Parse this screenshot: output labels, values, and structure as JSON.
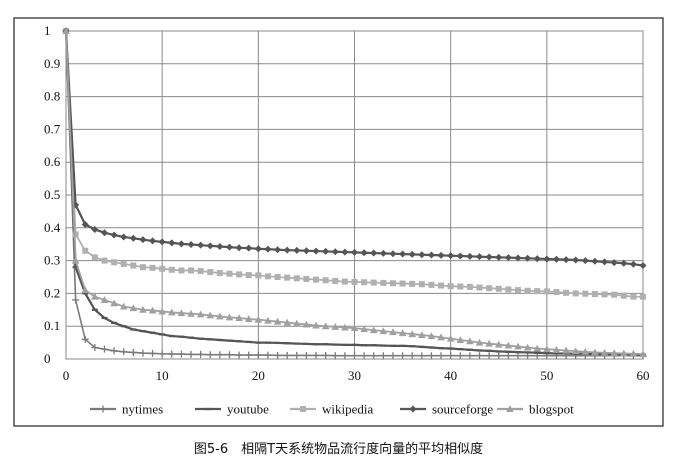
{
  "caption": "图5-6　相隔T天系统物品流行度向量的平均相似度",
  "chart_data": {
    "type": "line",
    "xlim": [
      0,
      60
    ],
    "ylim": [
      0,
      1
    ],
    "x_ticks": [
      0,
      10,
      20,
      30,
      40,
      50,
      60
    ],
    "y_ticks": [
      0,
      0.1,
      0.2,
      0.3,
      0.4,
      0.5,
      0.6,
      0.7,
      0.8,
      0.9,
      1
    ],
    "grid": true,
    "legend_position": "bottom",
    "x": [
      0,
      1,
      2,
      3,
      4,
      5,
      6,
      7,
      8,
      9,
      10,
      11,
      12,
      13,
      14,
      15,
      16,
      17,
      18,
      19,
      20,
      21,
      22,
      23,
      24,
      25,
      26,
      27,
      28,
      29,
      30,
      31,
      32,
      33,
      34,
      35,
      36,
      37,
      38,
      39,
      40,
      41,
      42,
      43,
      44,
      45,
      46,
      47,
      48,
      49,
      50,
      51,
      52,
      53,
      54,
      55,
      56,
      57,
      58,
      59,
      60
    ],
    "series": [
      {
        "name": "nytimes",
        "color": "#7a7a7a",
        "marker": "plus",
        "values": [
          1,
          0.18,
          0.06,
          0.035,
          0.03,
          0.025,
          0.022,
          0.02,
          0.018,
          0.017,
          0.016,
          0.015,
          0.015,
          0.014,
          0.014,
          0.013,
          0.013,
          0.013,
          0.012,
          0.012,
          0.012,
          0.012,
          0.011,
          0.011,
          0.011,
          0.011,
          0.011,
          0.011,
          0.01,
          0.01,
          0.01,
          0.01,
          0.01,
          0.01,
          0.01,
          0.01,
          0.01,
          0.01,
          0.01,
          0.01,
          0.01,
          0.01,
          0.01,
          0.01,
          0.01,
          0.01,
          0.01,
          0.01,
          0.01,
          0.01,
          0.01,
          0.01,
          0.01,
          0.01,
          0.01,
          0.01,
          0.01,
          0.01,
          0.01,
          0.01,
          0.01
        ]
      },
      {
        "name": "youtube",
        "color": "#555555",
        "marker": "dash",
        "values": [
          1,
          0.28,
          0.2,
          0.15,
          0.125,
          0.11,
          0.1,
          0.09,
          0.085,
          0.08,
          0.075,
          0.07,
          0.068,
          0.065,
          0.062,
          0.06,
          0.058,
          0.056,
          0.054,
          0.052,
          0.05,
          0.05,
          0.049,
          0.048,
          0.047,
          0.046,
          0.045,
          0.045,
          0.044,
          0.043,
          0.043,
          0.042,
          0.042,
          0.041,
          0.04,
          0.04,
          0.039,
          0.037,
          0.035,
          0.033,
          0.032,
          0.03,
          0.028,
          0.026,
          0.025,
          0.023,
          0.022,
          0.021,
          0.02,
          0.019,
          0.018,
          0.017,
          0.017,
          0.016,
          0.016,
          0.015,
          0.015,
          0.014,
          0.014,
          0.014,
          0.013
        ]
      },
      {
        "name": "wikipedia",
        "color": "#b0b0b0",
        "marker": "square",
        "values": [
          1,
          0.38,
          0.33,
          0.31,
          0.3,
          0.295,
          0.29,
          0.285,
          0.28,
          0.278,
          0.275,
          0.272,
          0.27,
          0.27,
          0.268,
          0.265,
          0.262,
          0.26,
          0.258,
          0.256,
          0.255,
          0.252,
          0.25,
          0.248,
          0.246,
          0.244,
          0.242,
          0.24,
          0.238,
          0.236,
          0.235,
          0.234,
          0.233,
          0.232,
          0.231,
          0.23,
          0.229,
          0.228,
          0.226,
          0.224,
          0.222,
          0.221,
          0.22,
          0.218,
          0.216,
          0.214,
          0.212,
          0.21,
          0.208,
          0.207,
          0.206,
          0.204,
          0.202,
          0.2,
          0.199,
          0.198,
          0.197,
          0.196,
          0.193,
          0.19,
          0.19
        ]
      },
      {
        "name": "sourceforge",
        "color": "#555555",
        "marker": "diamond",
        "values": [
          1,
          0.47,
          0.41,
          0.395,
          0.385,
          0.378,
          0.372,
          0.368,
          0.364,
          0.36,
          0.357,
          0.354,
          0.351,
          0.349,
          0.347,
          0.345,
          0.343,
          0.341,
          0.339,
          0.338,
          0.336,
          0.335,
          0.333,
          0.332,
          0.331,
          0.33,
          0.329,
          0.328,
          0.327,
          0.326,
          0.325,
          0.324,
          0.323,
          0.322,
          0.321,
          0.32,
          0.319,
          0.318,
          0.317,
          0.316,
          0.315,
          0.314,
          0.313,
          0.312,
          0.311,
          0.31,
          0.309,
          0.308,
          0.307,
          0.306,
          0.305,
          0.304,
          0.303,
          0.302,
          0.3,
          0.298,
          0.296,
          0.294,
          0.292,
          0.289,
          0.285
        ]
      },
      {
        "name": "blogspot",
        "color": "#a0a0a0",
        "marker": "triangle",
        "values": [
          1,
          0.3,
          0.21,
          0.19,
          0.18,
          0.17,
          0.16,
          0.155,
          0.15,
          0.148,
          0.145,
          0.142,
          0.14,
          0.138,
          0.136,
          0.133,
          0.13,
          0.127,
          0.125,
          0.122,
          0.12,
          0.117,
          0.114,
          0.111,
          0.108,
          0.105,
          0.102,
          0.1,
          0.098,
          0.096,
          0.094,
          0.091,
          0.088,
          0.085,
          0.082,
          0.079,
          0.076,
          0.073,
          0.07,
          0.066,
          0.062,
          0.058,
          0.054,
          0.05,
          0.047,
          0.044,
          0.041,
          0.038,
          0.035,
          0.032,
          0.03,
          0.028,
          0.026,
          0.024,
          0.022,
          0.02,
          0.019,
          0.018,
          0.017,
          0.016,
          0.015
        ]
      }
    ]
  }
}
